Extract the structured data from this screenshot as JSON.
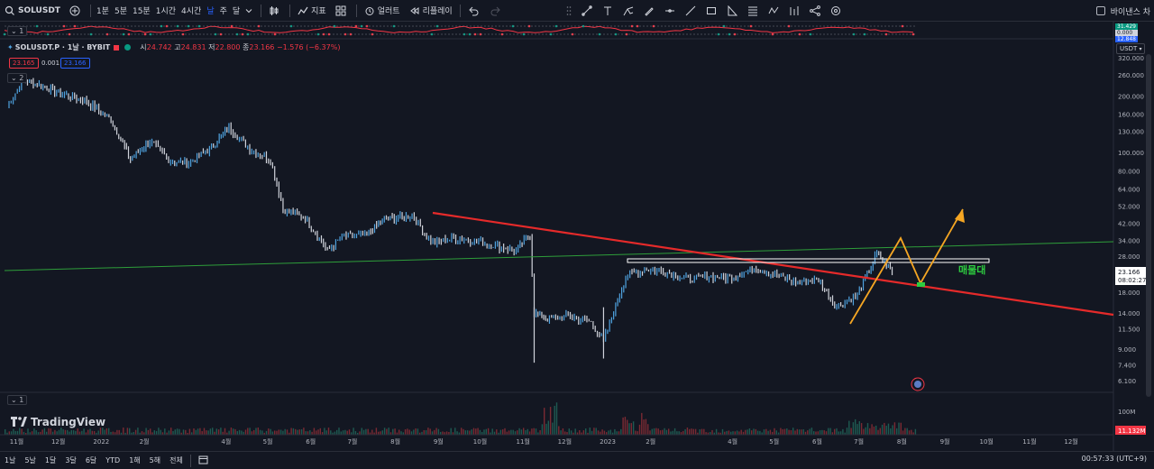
{
  "toolbar": {
    "symbol": "SOLUSDT",
    "intervals": [
      "1분",
      "5분",
      "15분",
      "1시간",
      "4시간",
      "날",
      "주",
      "달"
    ],
    "active_interval": "날",
    "indicators_label": "지표",
    "alert_label": "얼러트",
    "replay_label": "리플레이",
    "right_label": "바이낸스 차"
  },
  "legend": {
    "symbol": "SOLUSDT.P · 1날 · BYBIT",
    "open_label": "시",
    "open": "24.742",
    "high_label": "고",
    "high": "24.831",
    "low_label": "저",
    "low": "22.800",
    "close_label": "종",
    "close": "23.166",
    "change": "−1.576 (−6.37%)",
    "bid": "23.165",
    "spread": "0.001",
    "ask": "23.166"
  },
  "panes": {
    "indicator_top": "1",
    "main": "2",
    "volume": "1"
  },
  "top_indicator_values": [
    "31.429",
    "0.000",
    "12.848"
  ],
  "currency": "USDT",
  "last_price": "23.166",
  "countdown": "08:02:27",
  "volume_axis": {
    "tick": "100M",
    "last": "11.132M"
  },
  "annotation": "매물대",
  "watermark": "TradingView",
  "bottom": {
    "ranges": [
      "1날",
      "5날",
      "1달",
      "3달",
      "6달",
      "YTD",
      "1해",
      "5해",
      "전체"
    ],
    "time": "00:57:33 (UTC+9)"
  },
  "colors": {
    "up": "#089981",
    "down": "#f23645",
    "candle_line": "#4fa3e0",
    "trend_red": "#e52a2a",
    "trend_green": "#2e9e3a",
    "orange": "#f5a623",
    "zone": "#ffffff",
    "annotation": "#2ecc40"
  },
  "chart_data": {
    "type": "line",
    "scale": "log",
    "y_ticks": [
      "320.000",
      "260.000",
      "200.000",
      "160.000",
      "130.000",
      "100.000",
      "80.000",
      "64.000",
      "52.000",
      "42.000",
      "34.000",
      "28.000",
      "18.000",
      "14.000",
      "11.500",
      "9.000",
      "7.400",
      "6.100"
    ],
    "x_ticks": [
      "11월",
      "12월",
      "2022",
      "2월",
      "4월",
      "5월",
      "6월",
      "7월",
      "8월",
      "9월",
      "10월",
      "11월",
      "12월",
      "2023",
      "2월",
      "4월",
      "5월",
      "6월",
      "7월",
      "8월",
      "9월",
      "10월",
      "11월",
      "12월"
    ],
    "series": [
      {
        "values": [
          {
            "x": "2021-10-25",
            "y": 175
          },
          {
            "x": "2021-11-06",
            "y": 245
          },
          {
            "x": "2021-11-20",
            "y": 225
          },
          {
            "x": "2021-12-04",
            "y": 205
          },
          {
            "x": "2021-12-20",
            "y": 190
          },
          {
            "x": "2022-01-08",
            "y": 150
          },
          {
            "x": "2022-01-22",
            "y": 92
          },
          {
            "x": "2022-02-05",
            "y": 115
          },
          {
            "x": "2022-02-20",
            "y": 90
          },
          {
            "x": "2022-03-05",
            "y": 88
          },
          {
            "x": "2022-03-20",
            "y": 105
          },
          {
            "x": "2022-04-03",
            "y": 135
          },
          {
            "x": "2022-04-18",
            "y": 105
          },
          {
            "x": "2022-05-03",
            "y": 92
          },
          {
            "x": "2022-05-12",
            "y": 50
          },
          {
            "x": "2022-05-28",
            "y": 45
          },
          {
            "x": "2022-06-13",
            "y": 30
          },
          {
            "x": "2022-06-25",
            "y": 36
          },
          {
            "x": "2022-07-10",
            "y": 36
          },
          {
            "x": "2022-07-24",
            "y": 44
          },
          {
            "x": "2022-08-13",
            "y": 46
          },
          {
            "x": "2022-08-28",
            "y": 33
          },
          {
            "x": "2022-09-12",
            "y": 35
          },
          {
            "x": "2022-09-27",
            "y": 34
          },
          {
            "x": "2022-10-12",
            "y": 32
          },
          {
            "x": "2022-10-27",
            "y": 30
          },
          {
            "x": "2022-11-06",
            "y": 37
          },
          {
            "x": "2022-11-09",
            "y": 14
          },
          {
            "x": "2022-11-20",
            "y": 13
          },
          {
            "x": "2022-12-05",
            "y": 13.5
          },
          {
            "x": "2022-12-20",
            "y": 12.5
          },
          {
            "x": "2022-12-29",
            "y": 9.9
          },
          {
            "x": "2023-01-14",
            "y": 22
          },
          {
            "x": "2023-01-29",
            "y": 24
          },
          {
            "x": "2023-02-13",
            "y": 23
          },
          {
            "x": "2023-02-28",
            "y": 21
          },
          {
            "x": "2023-03-15",
            "y": 22
          },
          {
            "x": "2023-03-30",
            "y": 21.5
          },
          {
            "x": "2023-04-18",
            "y": 24.5
          },
          {
            "x": "2023-05-03",
            "y": 22
          },
          {
            "x": "2023-05-18",
            "y": 20.5
          },
          {
            "x": "2023-06-02",
            "y": 21
          },
          {
            "x": "2023-06-15",
            "y": 15
          },
          {
            "x": "2023-06-30",
            "y": 17.5
          },
          {
            "x": "2023-07-14",
            "y": 29
          },
          {
            "x": "2023-07-25",
            "y": 23.2
          }
        ]
      }
    ]
  }
}
